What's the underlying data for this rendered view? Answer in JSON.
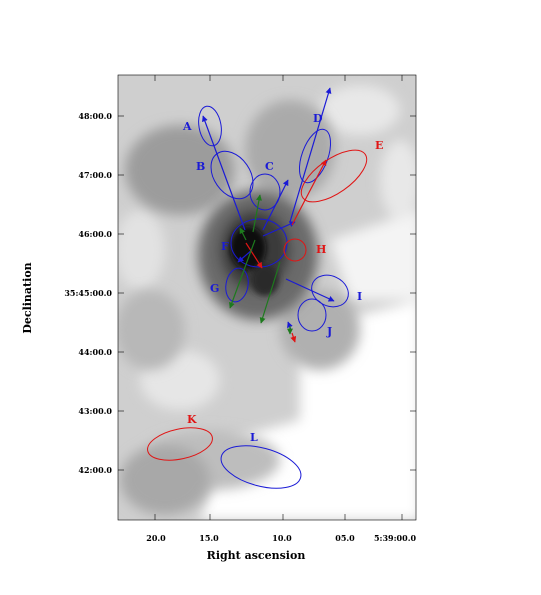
{
  "axes": {
    "xlabel": "Right ascension",
    "ylabel": "Declination",
    "x_ticks": [
      "20.0",
      "15.0",
      "10.0",
      "05.0",
      "5:39:00.0"
    ],
    "y_ticks": [
      "48:00.0",
      "47:00.0",
      "46:00.0",
      "35:45:00.0",
      "44:00.0",
      "43:00.0",
      "42:00.0"
    ]
  },
  "colors": {
    "blue": "#1a1ad6",
    "red": "#e01515",
    "green": "#1d7a1d"
  },
  "sources": [
    {
      "label": "A",
      "color": "blue"
    },
    {
      "label": "B",
      "color": "blue"
    },
    {
      "label": "C",
      "color": "blue"
    },
    {
      "label": "D",
      "color": "blue"
    },
    {
      "label": "E",
      "color": "red"
    },
    {
      "label": "F",
      "color": "blue"
    },
    {
      "label": "G",
      "color": "blue"
    },
    {
      "label": "H",
      "color": "red"
    },
    {
      "label": "I",
      "color": "blue"
    },
    {
      "label": "J",
      "color": "blue"
    },
    {
      "label": "K",
      "color": "red"
    },
    {
      "label": "L",
      "color": "blue"
    }
  ]
}
